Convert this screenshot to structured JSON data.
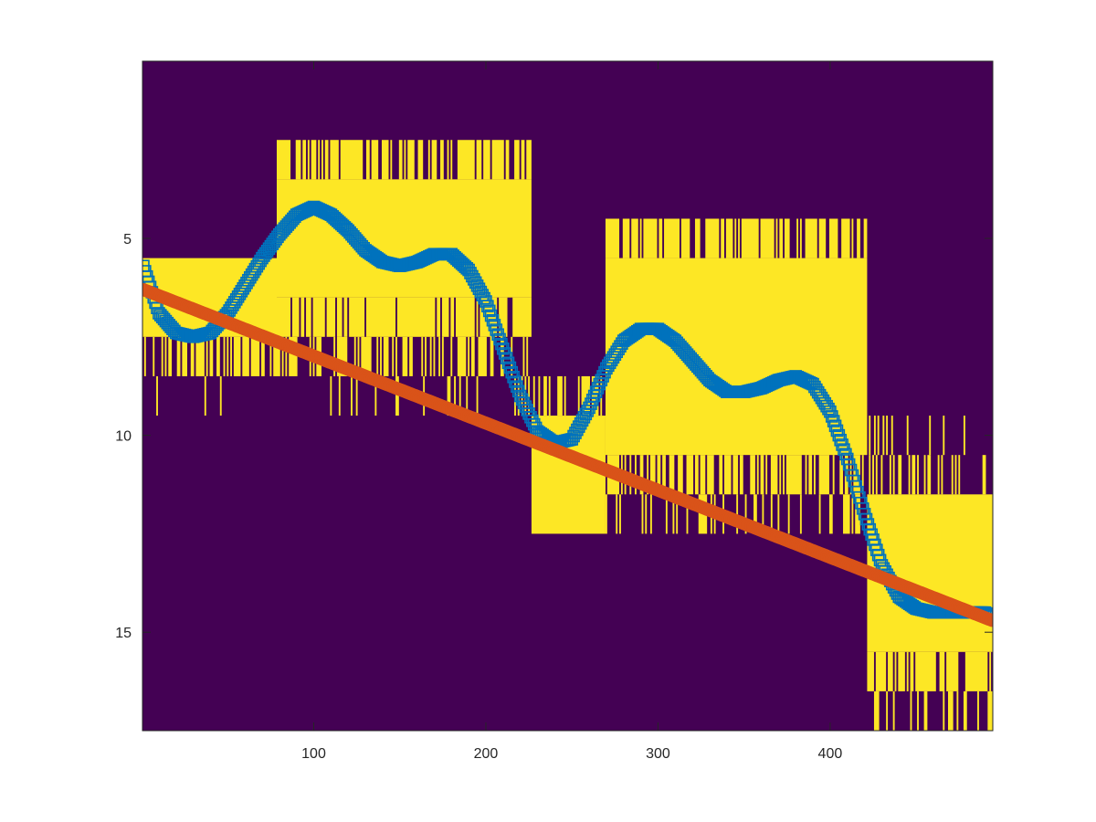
{
  "chart_data": {
    "type": "heatmap",
    "title": "",
    "xlabel": "",
    "ylabel": "",
    "xlim": [
      0.5,
      494.5
    ],
    "ylim": [
      17.5,
      0.5
    ],
    "y_direction": "reversed",
    "grid": false,
    "legend": "none",
    "xticks": [
      100,
      200,
      300,
      400
    ],
    "yticks": [
      5,
      10,
      15
    ],
    "xtick_labels": [
      "100",
      "200",
      "300",
      "400"
    ],
    "ytick_labels": [
      "5",
      "10",
      "15"
    ],
    "image": {
      "colormap": "parula",
      "background_color": "#440154",
      "foreground_color": "#FDE725",
      "yellow_regions": [
        {
          "x": [
            1,
            78
          ],
          "y": [
            6,
            8
          ],
          "fill": 1.0
        },
        {
          "x": [
            1,
            78
          ],
          "y": [
            8,
            9
          ],
          "fill": 0.55
        },
        {
          "x": [
            1,
            78
          ],
          "y": [
            9,
            10
          ],
          "fill": 0.08
        },
        {
          "x": [
            79,
            226
          ],
          "y": [
            3,
            4
          ],
          "fill": 0.7
        },
        {
          "x": [
            79,
            226
          ],
          "y": [
            4,
            7
          ],
          "fill": 1.0
        },
        {
          "x": [
            79,
            226
          ],
          "y": [
            7,
            8
          ],
          "fill": 0.85
        },
        {
          "x": [
            79,
            226
          ],
          "y": [
            8,
            9
          ],
          "fill": 0.45
        },
        {
          "x": [
            79,
            226
          ],
          "y": [
            9,
            10
          ],
          "fill": 0.12
        },
        {
          "x": [
            227,
            269
          ],
          "y": [
            9,
            10
          ],
          "fill": 0.5
        },
        {
          "x": [
            227,
            269
          ],
          "y": [
            10,
            13
          ],
          "fill": 1.0
        },
        {
          "x": [
            270,
            421
          ],
          "y": [
            5,
            6
          ],
          "fill": 0.75
        },
        {
          "x": [
            270,
            421
          ],
          "y": [
            6,
            11
          ],
          "fill": 1.0
        },
        {
          "x": [
            270,
            421
          ],
          "y": [
            11,
            12
          ],
          "fill": 0.6
        },
        {
          "x": [
            270,
            421
          ],
          "y": [
            12,
            13
          ],
          "fill": 0.2
        },
        {
          "x": [
            422,
            494
          ],
          "y": [
            10,
            11
          ],
          "fill": 0.1
        },
        {
          "x": [
            422,
            494
          ],
          "y": [
            11,
            12
          ],
          "fill": 0.35
        },
        {
          "x": [
            422,
            494
          ],
          "y": [
            12,
            16
          ],
          "fill": 1.0
        },
        {
          "x": [
            422,
            494
          ],
          "y": [
            16,
            17
          ],
          "fill": 0.8
        },
        {
          "x": [
            422,
            494
          ],
          "y": [
            17,
            18
          ],
          "fill": 0.25
        }
      ]
    },
    "series": [
      {
        "marker": "square",
        "color": "#0072BD",
        "x": [
          1,
          10,
          20,
          30,
          40,
          50,
          60,
          70,
          80,
          90,
          100,
          110,
          120,
          130,
          140,
          150,
          160,
          170,
          180,
          190,
          200,
          210,
          220,
          230,
          240,
          250,
          260,
          270,
          280,
          290,
          300,
          310,
          320,
          330,
          340,
          350,
          360,
          370,
          380,
          390,
          400,
          410,
          420,
          430,
          440,
          450,
          460,
          470,
          480,
          490,
          494
        ],
        "y": [
          5.7,
          6.9,
          7.4,
          7.5,
          7.4,
          6.9,
          6.2,
          5.5,
          4.9,
          4.4,
          4.2,
          4.4,
          4.8,
          5.3,
          5.6,
          5.7,
          5.6,
          5.4,
          5.4,
          5.8,
          6.6,
          7.8,
          9.0,
          9.9,
          10.2,
          10.1,
          9.3,
          8.3,
          7.6,
          7.3,
          7.3,
          7.6,
          8.1,
          8.6,
          8.9,
          8.9,
          8.8,
          8.6,
          8.5,
          8.7,
          9.4,
          10.6,
          12.0,
          13.3,
          14.1,
          14.4,
          14.5,
          14.5,
          14.5,
          14.5,
          14.6
        ]
      },
      {
        "marker": "circle",
        "color": "#D95319",
        "x": [
          1,
          494
        ],
        "y": [
          6.3,
          14.7
        ]
      }
    ]
  }
}
